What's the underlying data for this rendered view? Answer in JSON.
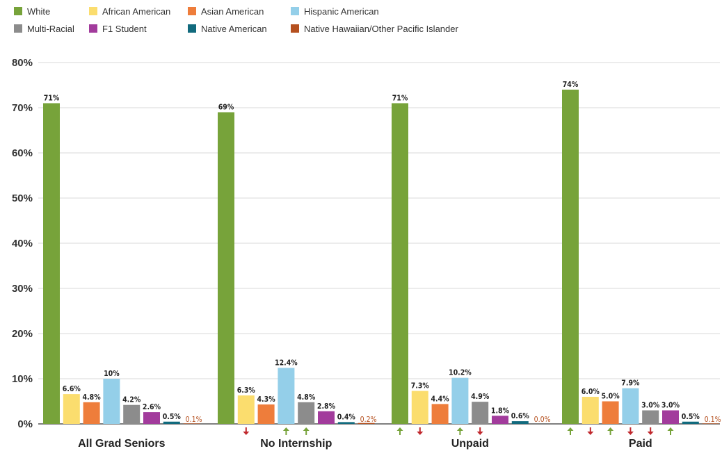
{
  "chart_data": {
    "type": "bar",
    "title": "",
    "xlabel": "",
    "ylabel": "",
    "ylim": [
      0,
      80
    ],
    "y_ticks": [
      0,
      10,
      20,
      30,
      40,
      50,
      60,
      70,
      80
    ],
    "y_tick_labels": [
      "0%",
      "10%",
      "20%",
      "30%",
      "40%",
      "50%",
      "60%",
      "70%",
      "80%"
    ],
    "grid": true,
    "legend_position": "top-left",
    "categories": [
      "All Grad Seniors",
      "No Internship",
      "Unpaid",
      "Paid"
    ],
    "series": [
      {
        "name": "White",
        "color": "#77a33a",
        "values": [
          71,
          69,
          71,
          74
        ],
        "labels": [
          "71%",
          "69%",
          "71%",
          "74%"
        ]
      },
      {
        "name": "African American",
        "color": "#fbdd6e",
        "values": [
          6.6,
          6.3,
          7.3,
          6.0
        ],
        "labels": [
          "6.6%",
          "6.3%",
          "7.3%",
          "6.0%"
        ]
      },
      {
        "name": "Asian American",
        "color": "#ee7d3b",
        "values": [
          4.8,
          4.3,
          4.4,
          5.0
        ],
        "labels": [
          "4.8%",
          "4.3%",
          "4.4%",
          "5.0%"
        ]
      },
      {
        "name": "Hispanic American",
        "color": "#94cfe9",
        "values": [
          10,
          12.4,
          10.2,
          7.9
        ],
        "labels": [
          "10%",
          "12.4%",
          "10.2%",
          "7.9%"
        ]
      },
      {
        "name": "Multi-Racial",
        "color": "#8c8c8c",
        "values": [
          4.2,
          4.8,
          4.9,
          3.0
        ],
        "labels": [
          "4.2%",
          "4.8%",
          "4.9%",
          "3.0%"
        ]
      },
      {
        "name": "F1 Student",
        "color": "#a23b9c",
        "values": [
          2.6,
          2.8,
          1.8,
          3.0
        ],
        "labels": [
          "2.6%",
          "2.8%",
          "1.8%",
          "3.0%"
        ]
      },
      {
        "name": "Native American",
        "color": "#116a7d",
        "values": [
          0.5,
          0.4,
          0.6,
          0.5
        ],
        "labels": [
          "0.5%",
          "0.4%",
          "0.6%",
          "0.5%"
        ]
      },
      {
        "name": "Native Hawaiian/Other Pacific Islander",
        "color": "#b5501f",
        "values": [
          0.1,
          0.2,
          0.0,
          0.1
        ],
        "labels": [
          "0.1%",
          "0.2%",
          "0.0%",
          "0.1%"
        ]
      }
    ],
    "change_arrows": [
      [
        null,
        null,
        null,
        null,
        null,
        null,
        null,
        null
      ],
      [
        null,
        "down",
        null,
        "up",
        "up",
        null,
        null,
        null
      ],
      [
        "up",
        "down",
        null,
        "up",
        "down",
        null,
        null,
        null
      ],
      [
        "up",
        "down",
        "up",
        "down",
        "down",
        "up",
        null,
        null
      ]
    ],
    "arrow_colors": {
      "up": "#77a33a",
      "down": "#c0282d"
    }
  }
}
